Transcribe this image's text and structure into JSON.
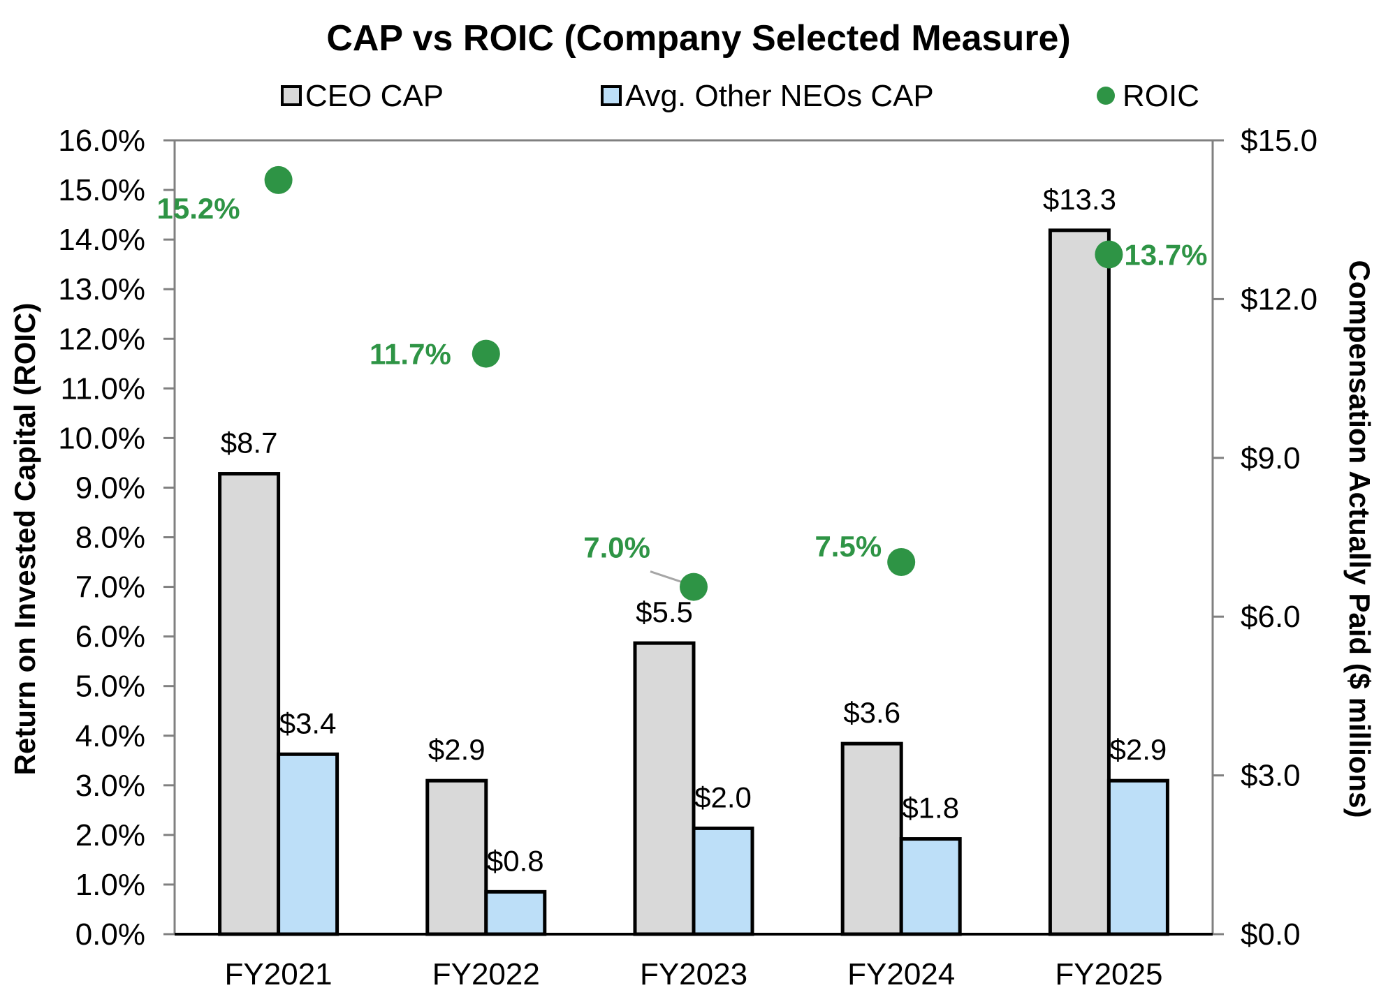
{
  "colors": {
    "ceo_fill": "#d9d9d9",
    "neo_fill": "#bddff8",
    "roic": "#2e9445",
    "bar_stroke": "#000000",
    "axis": "#808080"
  },
  "chart_data": {
    "type": "bar",
    "title": "CAP vs ROIC (Company Selected Measure)",
    "categories": [
      "FY2021",
      "FY2022",
      "FY2023",
      "FY2024",
      "FY2025"
    ],
    "series": [
      {
        "name": "CEO CAP",
        "axis": "right",
        "values": [
          8.7,
          2.9,
          5.5,
          3.6,
          13.3
        ],
        "labels": [
          "$8.7",
          "$2.9",
          "$5.5",
          "$3.6",
          "$13.3"
        ]
      },
      {
        "name": "Avg. Other NEOs CAP",
        "axis": "right",
        "values": [
          3.4,
          0.8,
          2.0,
          1.8,
          2.9
        ],
        "labels": [
          "$3.4",
          "$0.8",
          "$2.0",
          "$1.8",
          "$2.9"
        ]
      },
      {
        "name": "ROIC",
        "type": "scatter",
        "axis": "left",
        "values": [
          15.2,
          11.7,
          7.0,
          7.5,
          13.7
        ],
        "labels": [
          "15.2%",
          "11.7%",
          "7.0%",
          "7.5%",
          "13.7%"
        ]
      }
    ],
    "left_axis": {
      "label": "Return on Invested Capital (ROIC)",
      "range": [
        0,
        16
      ],
      "ticks": [
        "0.0%",
        "1.0%",
        "2.0%",
        "3.0%",
        "4.0%",
        "5.0%",
        "6.0%",
        "7.0%",
        "8.0%",
        "9.0%",
        "10.0%",
        "11.0%",
        "12.0%",
        "13.0%",
        "14.0%",
        "15.0%",
        "16.0%"
      ]
    },
    "right_axis": {
      "label": "Compensation Actually Paid ($ millions)",
      "range": [
        0,
        15
      ],
      "ticks": [
        "$0.0",
        "$3.0",
        "$6.0",
        "$9.0",
        "$12.0",
        "$15.0"
      ]
    },
    "legend": [
      "CEO CAP",
      "Avg. Other NEOs CAP",
      "ROIC"
    ],
    "legend_position": "top",
    "grid": false
  }
}
